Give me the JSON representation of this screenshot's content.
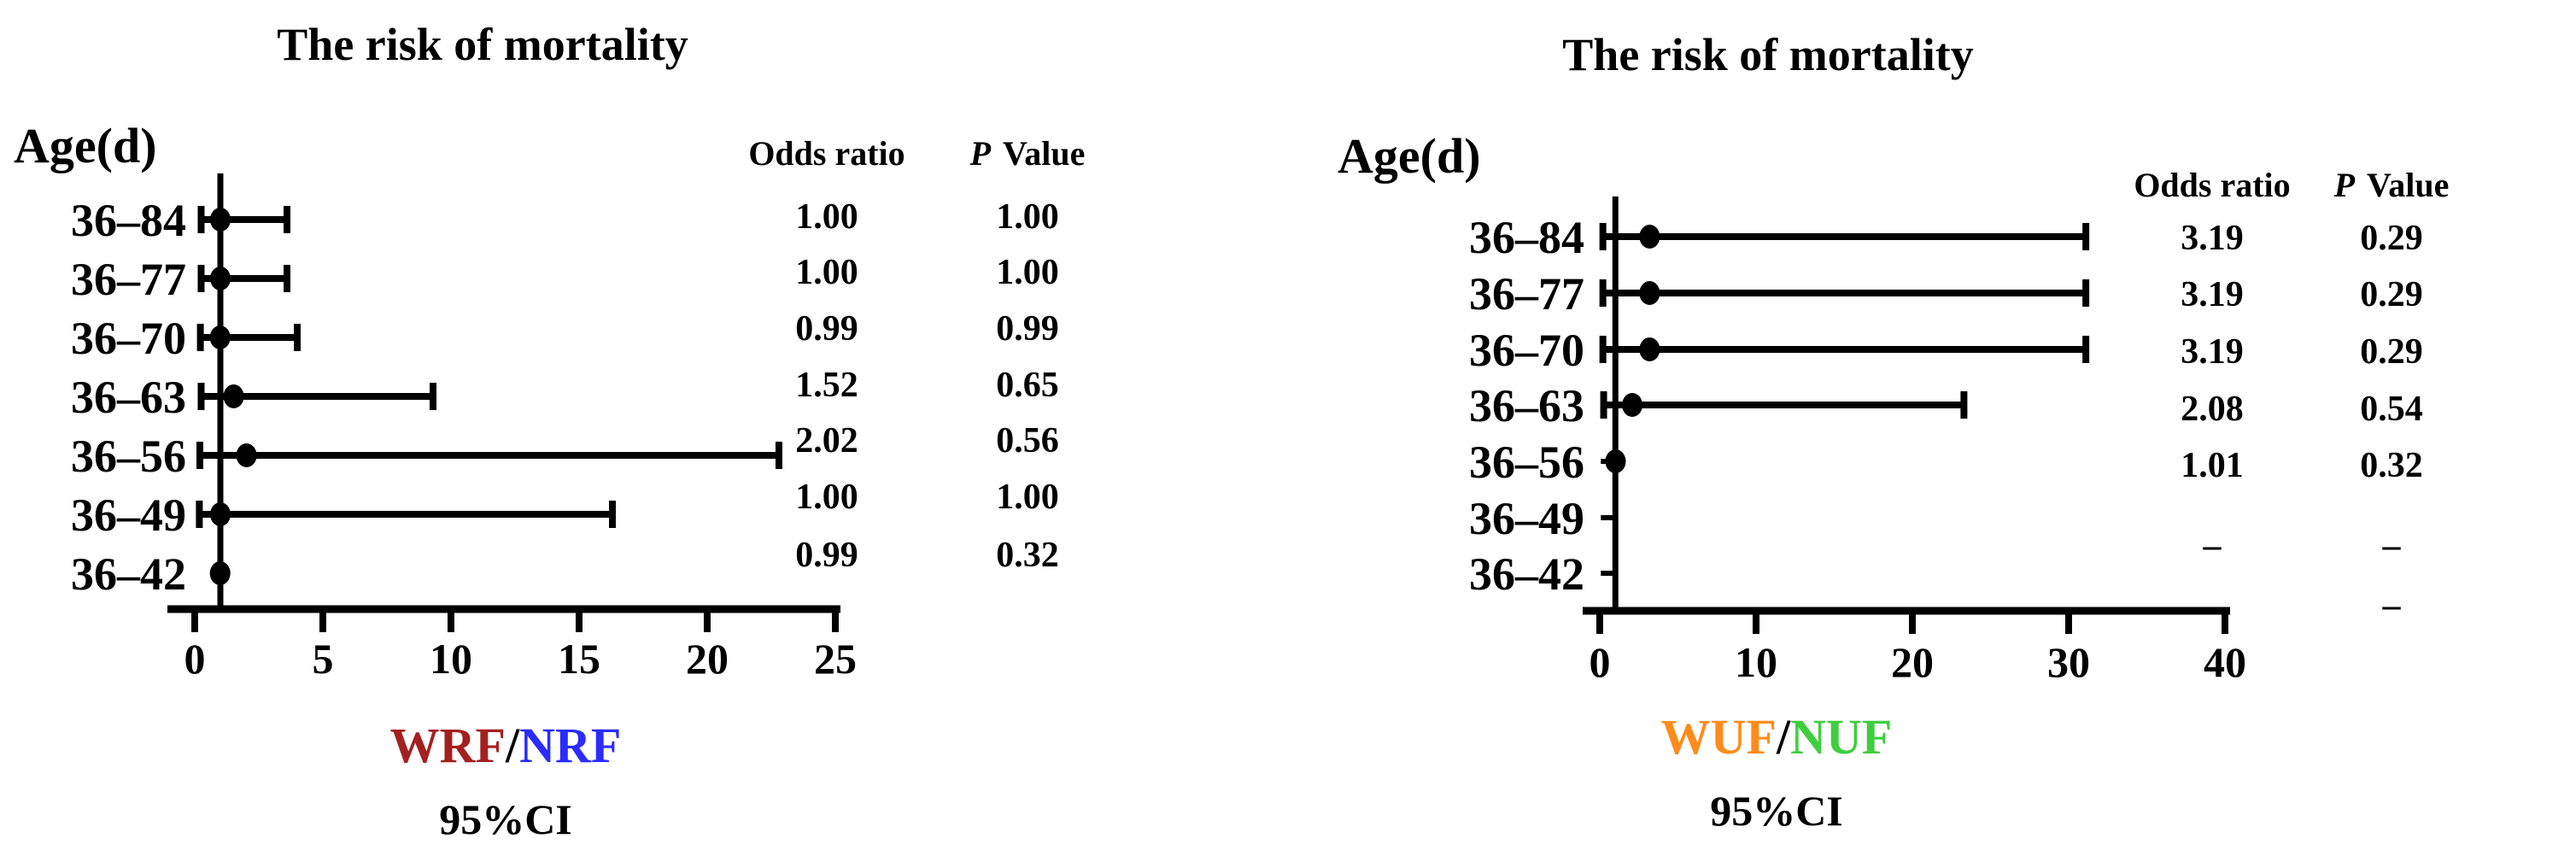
{
  "figure": {
    "background": "#ffffff"
  },
  "chart_data": [
    {
      "type": "forest",
      "title": "The risk of mortality",
      "row_axis_label": "Age(d)",
      "columns": {
        "odds_ratio": "Odds ratio",
        "p_italic": "P",
        "p_rest": "Value"
      },
      "categories": [
        "36–84",
        "36–77",
        "36–70",
        "36–63",
        "36–56",
        "36–49",
        "36–42"
      ],
      "odds_ratio_text": [
        "1.00",
        "1.00",
        "0.99",
        "1.52",
        "2.02",
        "1.00",
        "0.99"
      ],
      "p_value_text": [
        "1.00",
        "1.00",
        "0.99",
        "0.65",
        "0.56",
        "1.00",
        "0.32"
      ],
      "odds_ratio": [
        1.0,
        1.0,
        0.99,
        1.52,
        2.02,
        1.0,
        0.99
      ],
      "ci_low": [
        0.25,
        0.25,
        0.22,
        0.25,
        0.2,
        0.18,
        null
      ],
      "ci_high": [
        3.6,
        3.6,
        4.0,
        9.3,
        22.8,
        16.3,
        null
      ],
      "xlim": [
        0,
        25
      ],
      "x_ticks": [
        "0",
        "5",
        "10",
        "15",
        "20",
        "25"
      ],
      "x_tick_values": [
        0,
        5,
        10,
        15,
        20,
        25
      ],
      "ref_line_x": 1,
      "grid": false,
      "legend": {
        "numerator": "WRF",
        "slash": "/",
        "denominator": "NRF",
        "numerator_color": "#A32020",
        "slash_color": "#000000",
        "denominator_color": "#2B2BFF"
      },
      "ci_label": "95%CI"
    },
    {
      "type": "forest",
      "title": "The risk of mortality",
      "row_axis_label": "Age(d)",
      "columns": {
        "odds_ratio": "Odds ratio",
        "p_italic": "P",
        "p_rest": "Value"
      },
      "categories": [
        "36–84",
        "36–77",
        "36–70",
        "36–63",
        "36–56",
        "36–49",
        "36–42"
      ],
      "odds_ratio_text": [
        "3.19",
        "3.19",
        "3.19",
        "2.08",
        "1.01",
        "–",
        "–"
      ],
      "p_value_text": [
        "0.29",
        "0.29",
        "0.29",
        "0.54",
        "0.32",
        "–",
        "–"
      ],
      "odds_ratio": [
        3.19,
        3.19,
        3.19,
        2.08,
        1.01,
        null,
        null
      ],
      "ci_low": [
        0.2,
        0.2,
        0.2,
        0.25,
        null,
        null,
        null
      ],
      "ci_high": [
        31.1,
        31.1,
        31.1,
        23.3,
        null,
        null,
        null
      ],
      "xlim": [
        0,
        40
      ],
      "x_ticks": [
        "0",
        "10",
        "20",
        "30",
        "40"
      ],
      "x_tick_values": [
        0,
        10,
        20,
        30,
        40
      ],
      "ref_line_x": 1,
      "grid": false,
      "legend": {
        "numerator": "WUF",
        "slash": "/",
        "denominator": "NUF",
        "numerator_color": "#FF8C1A",
        "slash_color": "#000000",
        "denominator_color": "#3FCE3F"
      },
      "ci_label": "95%CI"
    }
  ]
}
